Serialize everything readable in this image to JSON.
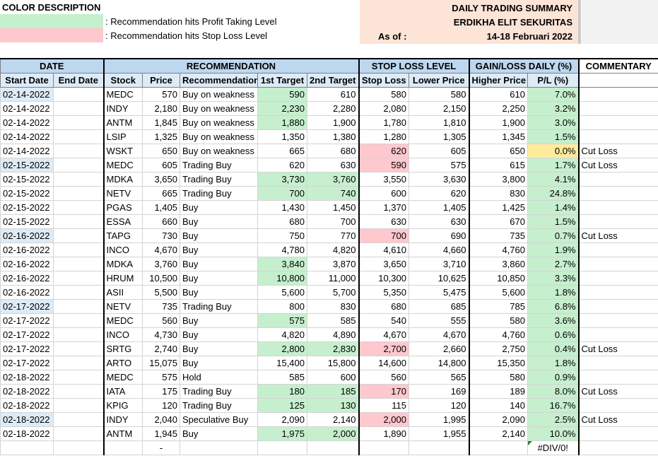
{
  "legend": {
    "title": "COLOR DESCRIPTION",
    "profit_text": ": Recommendation hits Profit Taking Level",
    "stop_text": ": Recommendation hits Stop Loss Level",
    "profit_color": "#c6efce",
    "stop_color": "#ffc7ce"
  },
  "summary": {
    "title": "DAILY TRADING SUMMARY",
    "firm": "ERDIKHA ELIT SEKURITAS",
    "as_of_label": "As of :",
    "date_range": "14-18 Februari 2022"
  },
  "headers": {
    "groups": [
      "DATE",
      "RECOMMENDATION",
      "STOP LOSS LEVEL",
      "GAIN/LOSS DAILY (%)",
      "COMMENTARY"
    ],
    "columns": [
      "Start Date",
      "End Date",
      "Stock",
      "Price",
      "Recommendation",
      "1st Target",
      "2nd Target",
      "Stop Loss",
      "Lower Price",
      "Higher Price",
      "P/L (%)"
    ]
  },
  "rows": [
    {
      "start": "02-14-2022",
      "end": "",
      "stock": "MEDC",
      "price": "570",
      "rec": "Buy on weakness",
      "t1": "590",
      "t2": "610",
      "sl": "580",
      "low": "580",
      "high": "610",
      "pl": "7.0%",
      "comment": ""
    },
    {
      "start": "02-14-2022",
      "end": "",
      "stock": "INDY",
      "price": "2,180",
      "rec": "Buy on weakness",
      "t1": "2,230",
      "t2": "2,280",
      "sl": "2,080",
      "low": "2,150",
      "high": "2,250",
      "pl": "3.2%",
      "comment": ""
    },
    {
      "start": "02-14-2022",
      "end": "",
      "stock": "ANTM",
      "price": "1,845",
      "rec": "Buy on weakness",
      "t1": "1,880",
      "t2": "1,900",
      "sl": "1,780",
      "low": "1,810",
      "high": "1,900",
      "pl": "3.0%",
      "comment": ""
    },
    {
      "start": "02-14-2022",
      "end": "",
      "stock": "LSIP",
      "price": "1,325",
      "rec": "Buy on weakness",
      "t1": "1,350",
      "t2": "1,380",
      "sl": "1,280",
      "low": "1,305",
      "high": "1,345",
      "pl": "1.5%",
      "comment": ""
    },
    {
      "start": "02-14-2022",
      "end": "",
      "stock": "WSKT",
      "price": "650",
      "rec": "Buy on weakness",
      "t1": "665",
      "t2": "680",
      "sl": "620",
      "low": "605",
      "high": "650",
      "pl": "0.0%",
      "comment": "Cut Loss"
    },
    {
      "start": "02-15-2022",
      "end": "",
      "stock": "MEDC",
      "price": "605",
      "rec": "Trading Buy",
      "t1": "620",
      "t2": "630",
      "sl": "590",
      "low": "575",
      "high": "615",
      "pl": "1.7%",
      "comment": "Cut Loss"
    },
    {
      "start": "02-15-2022",
      "end": "",
      "stock": "MDKA",
      "price": "3,650",
      "rec": "Trading Buy",
      "t1": "3,730",
      "t2": "3,760",
      "sl": "3,550",
      "low": "3,630",
      "high": "3,800",
      "pl": "4.1%",
      "comment": ""
    },
    {
      "start": "02-15-2022",
      "end": "",
      "stock": "NETV",
      "price": "665",
      "rec": "Trading Buy",
      "t1": "700",
      "t2": "740",
      "sl": "600",
      "low": "620",
      "high": "830",
      "pl": "24.8%",
      "comment": ""
    },
    {
      "start": "02-15-2022",
      "end": "",
      "stock": "PGAS",
      "price": "1,405",
      "rec": "Buy",
      "t1": "1,430",
      "t2": "1,450",
      "sl": "1,370",
      "low": "1,405",
      "high": "1,425",
      "pl": "1.4%",
      "comment": ""
    },
    {
      "start": "02-15-2022",
      "end": "",
      "stock": "ESSA",
      "price": "660",
      "rec": "Buy",
      "t1": "680",
      "t2": "700",
      "sl": "630",
      "low": "630",
      "high": "670",
      "pl": "1.5%",
      "comment": ""
    },
    {
      "start": "02-16-2022",
      "end": "",
      "stock": "TAPG",
      "price": "730",
      "rec": "Buy",
      "t1": "750",
      "t2": "770",
      "sl": "700",
      "low": "690",
      "high": "735",
      "pl": "0.7%",
      "comment": "Cut Loss"
    },
    {
      "start": "02-16-2022",
      "end": "",
      "stock": "INCO",
      "price": "4,670",
      "rec": "Buy",
      "t1": "4,780",
      "t2": "4,820",
      "sl": "4,610",
      "low": "4,660",
      "high": "4,760",
      "pl": "1.9%",
      "comment": ""
    },
    {
      "start": "02-16-2022",
      "end": "",
      "stock": "MDKA",
      "price": "3,760",
      "rec": "Buy",
      "t1": "3,840",
      "t2": "3,870",
      "sl": "3,650",
      "low": "3,710",
      "high": "3,860",
      "pl": "2.7%",
      "comment": ""
    },
    {
      "start": "02-16-2022",
      "end": "",
      "stock": "HRUM",
      "price": "10,500",
      "rec": "Buy",
      "t1": "10,800",
      "t2": "11,000",
      "sl": "10,300",
      "low": "10,625",
      "high": "10,850",
      "pl": "3.3%",
      "comment": ""
    },
    {
      "start": "02-16-2022",
      "end": "",
      "stock": "ASII",
      "price": "5,500",
      "rec": "Buy",
      "t1": "5,600",
      "t2": "5,700",
      "sl": "5,350",
      "low": "5,475",
      "high": "5,600",
      "pl": "1.8%",
      "comment": ""
    },
    {
      "start": "02-17-2022",
      "end": "",
      "stock": "NETV",
      "price": "735",
      "rec": "Trading Buy",
      "t1": "800",
      "t2": "830",
      "sl": "680",
      "low": "685",
      "high": "785",
      "pl": "6.8%",
      "comment": ""
    },
    {
      "start": "02-17-2022",
      "end": "",
      "stock": "MEDC",
      "price": "560",
      "rec": "Buy",
      "t1": "575",
      "t2": "585",
      "sl": "540",
      "low": "555",
      "high": "580",
      "pl": "3.6%",
      "comment": ""
    },
    {
      "start": "02-17-2022",
      "end": "",
      "stock": "INCO",
      "price": "4,730",
      "rec": "Buy",
      "t1": "4,820",
      "t2": "4,890",
      "sl": "4,670",
      "low": "4,670",
      "high": "4,760",
      "pl": "0.6%",
      "comment": ""
    },
    {
      "start": "02-17-2022",
      "end": "",
      "stock": "SRTG",
      "price": "2,740",
      "rec": "Buy",
      "t1": "2,800",
      "t2": "2,830",
      "sl": "2,700",
      "low": "2,660",
      "high": "2,750",
      "pl": "0.4%",
      "comment": "Cut Loss"
    },
    {
      "start": "02-17-2022",
      "end": "",
      "stock": "ARTO",
      "price": "15,075",
      "rec": "Buy",
      "t1": "15,400",
      "t2": "15,800",
      "sl": "14,600",
      "low": "14,800",
      "high": "15,350",
      "pl": "1.8%",
      "comment": ""
    },
    {
      "start": "02-18-2022",
      "end": "",
      "stock": "MEDC",
      "price": "575",
      "rec": "Hold",
      "t1": "585",
      "t2": "600",
      "sl": "560",
      "low": "565",
      "high": "580",
      "pl": "0.9%",
      "comment": ""
    },
    {
      "start": "02-18-2022",
      "end": "",
      "stock": "IATA",
      "price": "175",
      "rec": "Trading Buy",
      "t1": "180",
      "t2": "185",
      "sl": "170",
      "low": "169",
      "high": "189",
      "pl": "8.0%",
      "comment": "Cut Loss"
    },
    {
      "start": "02-18-2022",
      "end": "",
      "stock": "KPIG",
      "price": "120",
      "rec": "Trading Buy",
      "t1": "125",
      "t2": "130",
      "sl": "115",
      "low": "120",
      "high": "140",
      "pl": "16.7%",
      "comment": ""
    },
    {
      "start": "02-18-2022",
      "end": "",
      "stock": "INDY",
      "price": "2,040",
      "rec": "Speculative Buy",
      "t1": "2,090",
      "t2": "2,140",
      "sl": "2,000",
      "low": "1,995",
      "high": "2,090",
      "pl": "2.5%",
      "comment": "Cut Loss"
    },
    {
      "start": "02-18-2022",
      "end": "",
      "stock": "ANTM",
      "price": "1,945",
      "rec": "Buy",
      "t1": "1,975",
      "t2": "2,000",
      "sl": "1,890",
      "low": "1,955",
      "high": "2,140",
      "pl": "10.0%",
      "comment": ""
    }
  ],
  "last_row": {
    "price": "-",
    "pl": "#DIV/0!"
  }
}
